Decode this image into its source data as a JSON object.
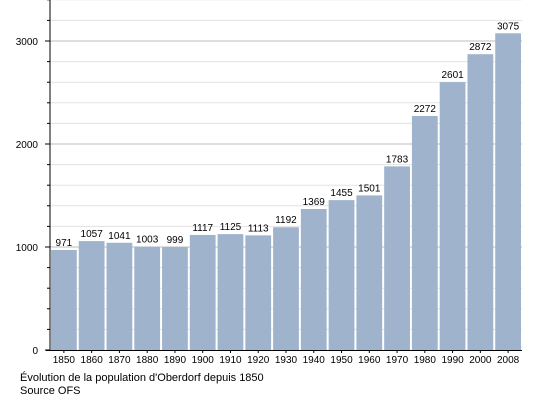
{
  "chart_data": {
    "type": "bar",
    "categories": [
      "1850",
      "1860",
      "1870",
      "1880",
      "1890",
      "1900",
      "1910",
      "1920",
      "1930",
      "1940",
      "1950",
      "1960",
      "1970",
      "1980",
      "1990",
      "2000",
      "2008"
    ],
    "values": [
      971,
      1057,
      1041,
      1003,
      999,
      1117,
      1125,
      1113,
      1192,
      1369,
      1455,
      1501,
      1783,
      2272,
      2601,
      2872,
      3075
    ],
    "ylim": [
      0,
      3400
    ],
    "yticks": [
      0,
      1000,
      2000,
      3000
    ],
    "grid": true,
    "bar_color": "#9fb3cc",
    "data_labels": true
  },
  "caption": {
    "title": "Évolution de la population d'Oberdorf depuis 1850",
    "source": "Source OFS"
  }
}
